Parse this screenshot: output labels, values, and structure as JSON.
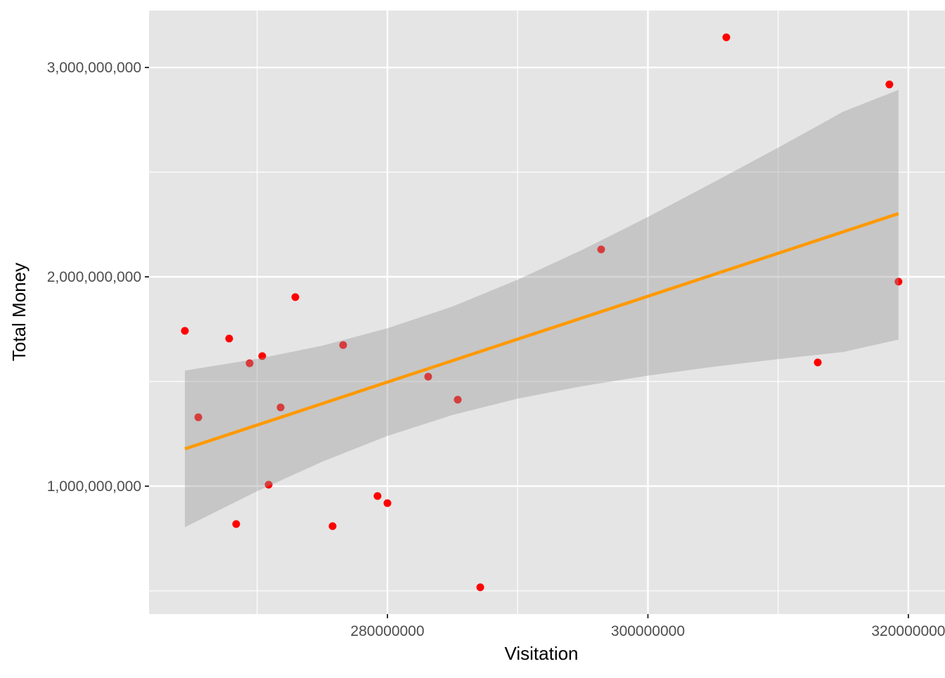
{
  "chart_data": {
    "type": "scatter",
    "title": "",
    "xlabel": "Visitation",
    "ylabel": "Total Money",
    "xlim": [
      261700000,
      322810000
    ],
    "ylim": [
      389000000,
      3272000000
    ],
    "x_ticks": [
      280000000,
      300000000,
      320000000
    ],
    "x_tick_labels": [
      "280000000",
      "300000000",
      "320000000"
    ],
    "x_minor": [
      270000000,
      290000000,
      310000000
    ],
    "y_ticks": [
      1000000000,
      2000000000,
      3000000000
    ],
    "y_tick_labels": [
      "1,000,000,000",
      "2,000,000,000",
      "3,000,000,000"
    ],
    "y_minor": [
      500000000,
      1500000000,
      2500000000
    ],
    "grid": true,
    "colors": {
      "panel": "#E5E5E5",
      "grid": "#FFFFFF",
      "point": "#FF0000",
      "line": "#FF9900",
      "ribbon": "#999999"
    },
    "points": {
      "x": [
        264450000,
        265480000,
        267850000,
        268390000,
        269420000,
        270390000,
        270880000,
        271800000,
        272930000,
        275790000,
        276600000,
        279240000,
        280000000,
        283130000,
        285400000,
        287130000,
        296410000,
        306020000,
        313040000,
        318540000,
        319240000
      ],
      "y": [
        1742000000,
        1329000000,
        1705000000,
        819000000,
        1587000000,
        1621000000,
        1007000000,
        1376000000,
        1903000000,
        809000000,
        1674000000,
        953000000,
        919000000,
        1523000000,
        1413000000,
        517000000,
        2131000000,
        3144000000,
        1591000000,
        2919000000,
        1977000000
      ]
    },
    "fit": {
      "type": "lm",
      "x": [
        264450000,
        319240000
      ],
      "y": [
        1178000000,
        2302000000
      ]
    },
    "confidence_band": {
      "x": [
        264450000,
        270000000,
        275000000,
        280000000,
        285000000,
        290000000,
        295000000,
        300000000,
        305000000,
        310000000,
        315000000,
        319240000
      ],
      "lower": [
        804000000,
        976000000,
        1117000000,
        1240000000,
        1340000000,
        1418000000,
        1478000000,
        1528000000,
        1570000000,
        1607000000,
        1641000000,
        1700000000
      ],
      "upper": [
        1552000000,
        1608000000,
        1671000000,
        1754000000,
        1858000000,
        1986000000,
        2130000000,
        2286000000,
        2450000000,
        2617000000,
        2789000000,
        2893000000
      ]
    }
  }
}
